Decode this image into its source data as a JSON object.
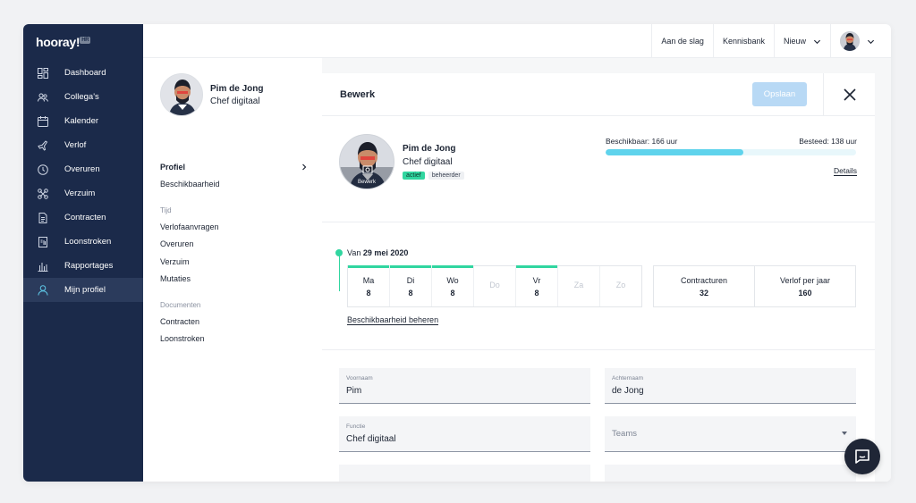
{
  "app": {
    "logo_text": "hooray!",
    "logo_badge": "HR"
  },
  "sidebar": {
    "items": [
      {
        "label": "Dashboard",
        "icon": "dashboard-icon"
      },
      {
        "label": "Collega's",
        "icon": "people-icon"
      },
      {
        "label": "Kalender",
        "icon": "calendar-icon"
      },
      {
        "label": "Verlof",
        "icon": "plane-icon"
      },
      {
        "label": "Overuren",
        "icon": "clock-icon"
      },
      {
        "label": "Verzuim",
        "icon": "bandage-icon"
      },
      {
        "label": "Contracten",
        "icon": "document-icon"
      },
      {
        "label": "Loonstroken",
        "icon": "payslip-icon"
      },
      {
        "label": "Rapportages",
        "icon": "bar-chart-icon"
      },
      {
        "label": "Mijn profiel",
        "icon": "user-icon",
        "active": true
      }
    ]
  },
  "topbar": {
    "get_started": "Aan de slag",
    "knowledge_base": "Kennisbank",
    "new": "Nieuw"
  },
  "subnav": {
    "name": "Pim de Jong",
    "role": "Chef digitaal",
    "profile": "Profiel",
    "availability": "Beschikbaarheid",
    "section_time": "Tijd",
    "leave_requests": "Verlofaanvragen",
    "overtime": "Overuren",
    "absence": "Verzuim",
    "mutations": "Mutaties",
    "section_documents": "Documenten",
    "contracts": "Contracten",
    "payslips": "Loonstroken"
  },
  "panel": {
    "title": "Bewerk",
    "save_label": "Opslaan",
    "avatar_edit_label": "Bewerk",
    "name": "Pim de Jong",
    "role": "Chef digitaal",
    "badge_active": "actief",
    "badge_admin": "beheerder",
    "available_label": "Beschikbaar: 166 uur",
    "spent_label": "Besteed: 138 uur",
    "progress_fraction": 0.55,
    "details_link": "Details"
  },
  "schedule": {
    "from_prefix": "Van",
    "from_date": "29 mei 2020",
    "days": [
      {
        "name": "Ma",
        "hours": "8",
        "on": true
      },
      {
        "name": "Di",
        "hours": "8",
        "on": true
      },
      {
        "name": "Wo",
        "hours": "8",
        "on": true
      },
      {
        "name": "Do",
        "hours": "",
        "on": false
      },
      {
        "name": "Vr",
        "hours": "8",
        "on": true
      },
      {
        "name": "Za",
        "hours": "",
        "on": false
      },
      {
        "name": "Zo",
        "hours": "",
        "on": false
      }
    ],
    "contract_hours_label": "Contracturen",
    "contract_hours_value": "32",
    "leave_per_year_label": "Verlof per jaar",
    "leave_per_year_value": "160",
    "manage_link": "Beschikbaarheid beheren"
  },
  "form": {
    "first_name_label": "Voornaam",
    "first_name_value": "Pim",
    "last_name_label": "Achternaam",
    "last_name_value": "de Jong",
    "function_label": "Functie",
    "function_value": "Chef digitaal",
    "teams_placeholder": "Teams"
  },
  "colors": {
    "sidebar_bg": "#1b2a4a",
    "accent_green": "#31d6a0",
    "progress_blue": "#5fd3ec",
    "save_disabled": "#b8d9f5"
  }
}
